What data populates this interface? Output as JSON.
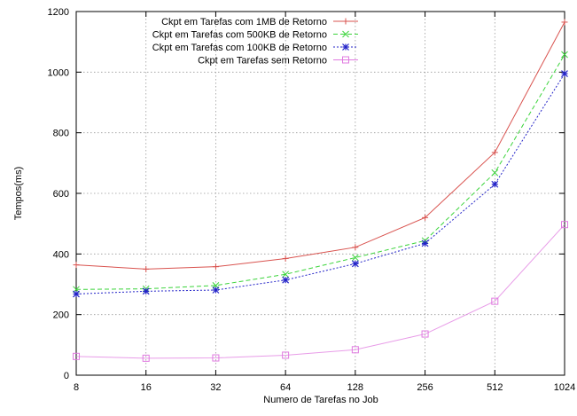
{
  "chart_data": {
    "type": "line",
    "title": "",
    "xlabel": "Numero de Tarefas no Job",
    "ylabel": "Tempos(ms)",
    "x_scale": "log2",
    "categories": [
      "8",
      "16",
      "32",
      "64",
      "128",
      "256",
      "512",
      "1024"
    ],
    "x": [
      8,
      16,
      32,
      64,
      128,
      256,
      512,
      1024
    ],
    "ylim": [
      0,
      1200
    ],
    "y_ticks": [
      "0",
      "200",
      "400",
      "600",
      "800",
      "1000",
      "1200"
    ],
    "grid": true,
    "legend_position": "top-left",
    "series": [
      {
        "name": "Ckpt em Tarefas com 1MB de Retorno",
        "color": "#d9534f",
        "marker": "plus",
        "line": "solid",
        "values": [
          364,
          350,
          358,
          385,
          422,
          520,
          735,
          1165
        ]
      },
      {
        "name": "Ckpt em Tarefas com 500KB de Retorno",
        "color": "#3bd43b",
        "marker": "cross",
        "line": "dashed",
        "values": [
          283,
          285,
          296,
          333,
          388,
          444,
          668,
          1058
        ]
      },
      {
        "name": "Ckpt em Tarefas com 100KB de Retorno",
        "color": "#2323c8",
        "marker": "star",
        "line": "dotted",
        "values": [
          268,
          277,
          281,
          314,
          368,
          435,
          630,
          995
        ]
      },
      {
        "name": "Ckpt em Tarefas sem Retorno",
        "color": "#e07be0",
        "marker": "square",
        "line": "solid-light",
        "values": [
          62,
          56,
          57,
          66,
          84,
          136,
          244,
          497
        ]
      }
    ]
  }
}
